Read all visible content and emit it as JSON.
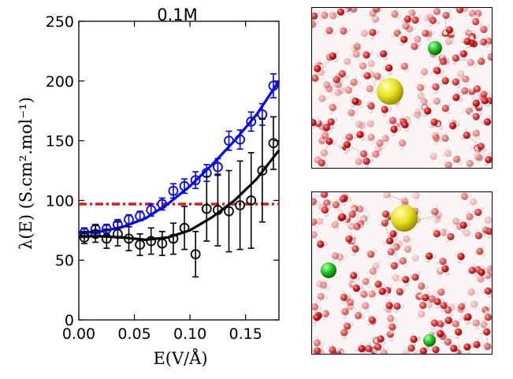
{
  "chart_data": {
    "type": "scatter",
    "title": "0.1M",
    "xlabel": "E(V/Å)",
    "ylabel": "λ(E) (S.cm².mol⁻¹)",
    "xlim": [
      0,
      0.18
    ],
    "ylim": [
      0,
      250
    ],
    "xticks": [
      "0.00",
      "0.05",
      "0.10",
      "0.15"
    ],
    "yticks": [
      "0",
      "50",
      "100",
      "150",
      "200",
      "250"
    ],
    "grid": false,
    "reference_line": {
      "y": 97,
      "color": "#e41a1c",
      "style": "dash-dot"
    },
    "series": [
      {
        "color": "#0000ff",
        "x": [
          0.005,
          0.015,
          0.025,
          0.035,
          0.045,
          0.055,
          0.065,
          0.075,
          0.085,
          0.095,
          0.105,
          0.115,
          0.125,
          0.135,
          0.145,
          0.155,
          0.165,
          0.175
        ],
        "y": [
          73,
          76,
          76,
          80,
          84,
          87,
          92,
          97,
          108,
          112,
          117,
          123,
          128,
          150,
          151,
          166,
          172,
          196
        ],
        "err": [
          4,
          4,
          4,
          4,
          4,
          4,
          5,
          5,
          6,
          6,
          7,
          7,
          7,
          8,
          8,
          8,
          9,
          10
        ],
        "fit": [
          [
            0,
            73
          ],
          [
            0.02,
            74
          ],
          [
            0.04,
            78
          ],
          [
            0.06,
            85
          ],
          [
            0.08,
            97
          ],
          [
            0.1,
            112
          ],
          [
            0.12,
            130
          ],
          [
            0.14,
            150
          ],
          [
            0.16,
            172
          ],
          [
            0.18,
            200
          ]
        ]
      },
      {
        "color": "#000000",
        "x": [
          0.005,
          0.015,
          0.025,
          0.035,
          0.045,
          0.055,
          0.065,
          0.075,
          0.085,
          0.095,
          0.105,
          0.115,
          0.125,
          0.135,
          0.145,
          0.155,
          0.165,
          0.175
        ],
        "y": [
          69,
          72,
          68,
          72,
          68,
          63,
          66,
          64,
          68,
          77,
          55,
          93,
          92,
          91,
          96,
          100,
          125,
          148
        ],
        "err": [
          5,
          7,
          8,
          10,
          10,
          9,
          11,
          10,
          13,
          18,
          19,
          27,
          30,
          34,
          37,
          40,
          43,
          22
        ],
        "fit": [
          [
            0,
            70
          ],
          [
            0.02,
            70
          ],
          [
            0.04,
            69
          ],
          [
            0.06,
            67
          ],
          [
            0.08,
            69
          ],
          [
            0.1,
            75
          ],
          [
            0.12,
            86
          ],
          [
            0.14,
            100
          ],
          [
            0.16,
            118
          ],
          [
            0.18,
            142
          ]
        ]
      }
    ]
  },
  "snapshots": [
    {
      "label": "snapshot-top",
      "ions": [
        "yellow",
        "green"
      ]
    },
    {
      "label": "snapshot-bottom",
      "ions": [
        "yellow",
        "green",
        "green"
      ]
    }
  ]
}
